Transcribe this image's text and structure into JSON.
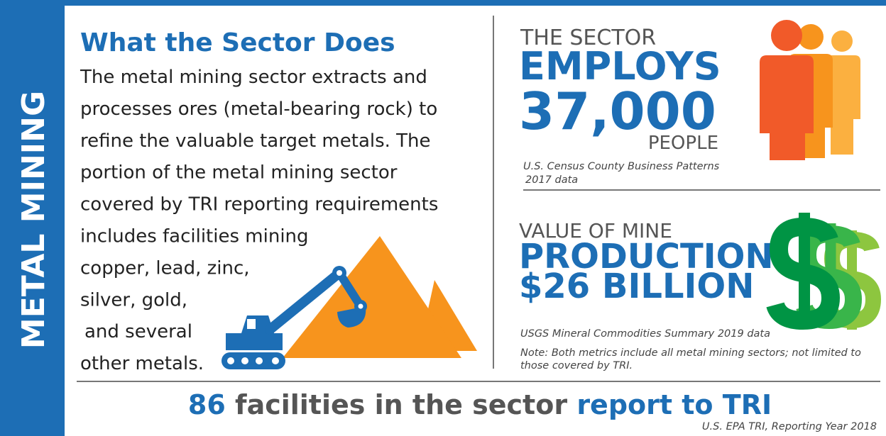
{
  "sidebar": {
    "title": "METAL MINING"
  },
  "about": {
    "heading": "What the Sector Does",
    "lines": [
      "The metal mining sector extracts and",
      "processes ores (metal-bearing rock) to",
      "refine the valuable target metals. The",
      "portion of the metal mining sector",
      "covered by TRI reporting requirements",
      "includes facilities mining",
      "copper, lead, zinc,",
      "silver, gold,",
      "and several",
      "other metals."
    ]
  },
  "employment": {
    "lead": "THE SECTOR",
    "verb": "EMPLOYS",
    "number": "37,000",
    "unit": "PEOPLE",
    "source": [
      "U.S. Census County Business Patterns",
      "2017 data"
    ]
  },
  "production": {
    "lead": "VALUE OF MINE",
    "label": "PRODUCTION",
    "amount": "$26 BILLION",
    "source": "USGS Mineral Commodities Summary 2019 data",
    "note": [
      "Note: Both metrics include all metal mining sectors; not limited to",
      "those covered by TRI."
    ]
  },
  "footer": {
    "count": "86",
    "middle": "facilities in the sector",
    "end": "report to TRI",
    "source": "U.S. EPA TRI, Reporting Year 2018"
  }
}
